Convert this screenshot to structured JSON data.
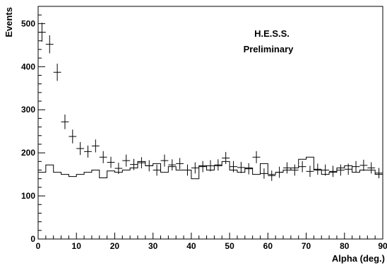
{
  "chart_data": {
    "type": "scatter",
    "xlabel": "Alpha (deg.)",
    "ylabel": "Events",
    "xlim": [
      0,
      90
    ],
    "ylim": [
      0,
      540
    ],
    "x_ticks": [
      0,
      10,
      20,
      30,
      40,
      50,
      60,
      70,
      80,
      90
    ],
    "x_tick_labels": [
      "0",
      "10",
      "20",
      "30",
      "40",
      "50",
      "60",
      "70",
      "80",
      "90"
    ],
    "y_ticks": [
      0,
      100,
      200,
      300,
      400,
      500
    ],
    "y_tick_labels": [
      "0",
      "100",
      "200",
      "300",
      "400",
      "500"
    ],
    "grid": false,
    "annotations": [
      "H.E.S.S.",
      "Preliminary"
    ],
    "bin_width": 2,
    "series": [
      {
        "style": "points-with-error-bars",
        "x": [
          1,
          3,
          5,
          7,
          9,
          11,
          13,
          15,
          17,
          19,
          21,
          23,
          25,
          27,
          29,
          31,
          33,
          35,
          37,
          39,
          41,
          43,
          45,
          47,
          49,
          51,
          53,
          55,
          57,
          59,
          61,
          63,
          65,
          67,
          69,
          71,
          73,
          75,
          77,
          79,
          81,
          83,
          85,
          87,
          89
        ],
        "y": [
          480,
          452,
          387,
          272,
          238,
          210,
          203,
          216,
          190,
          178,
          164,
          182,
          173,
          177,
          170,
          160,
          182,
          172,
          175,
          160,
          165,
          168,
          170,
          172,
          188,
          168,
          166,
          163,
          190,
          152,
          147,
          155,
          165,
          160,
          168,
          157,
          162,
          160,
          157,
          160,
          162,
          168,
          171,
          165,
          153
        ],
        "yerr": [
          22,
          21,
          20,
          17,
          16,
          15,
          14,
          15,
          14,
          13,
          13,
          14,
          13,
          13,
          13,
          13,
          14,
          13,
          13,
          13,
          13,
          13,
          13,
          13,
          14,
          13,
          13,
          13,
          14,
          12,
          12,
          13,
          13,
          13,
          13,
          13,
          13,
          13,
          13,
          13,
          13,
          13,
          13,
          13,
          12
        ]
      },
      {
        "style": "step-histogram",
        "x": [
          1,
          3,
          5,
          7,
          9,
          11,
          13,
          15,
          17,
          19,
          21,
          23,
          25,
          27,
          29,
          31,
          33,
          35,
          37,
          39,
          41,
          43,
          45,
          47,
          49,
          51,
          53,
          55,
          57,
          59,
          61,
          63,
          65,
          67,
          69,
          71,
          73,
          75,
          77,
          79,
          81,
          83,
          85,
          87,
          89
        ],
        "y": [
          155,
          172,
          155,
          150,
          145,
          150,
          155,
          160,
          142,
          158,
          155,
          160,
          165,
          180,
          170,
          175,
          155,
          168,
          160,
          160,
          140,
          170,
          160,
          170,
          180,
          160,
          155,
          165,
          150,
          175,
          150,
          155,
          160,
          165,
          185,
          190,
          160,
          150,
          155,
          165,
          170,
          155,
          160,
          160,
          150
        ]
      }
    ]
  }
}
